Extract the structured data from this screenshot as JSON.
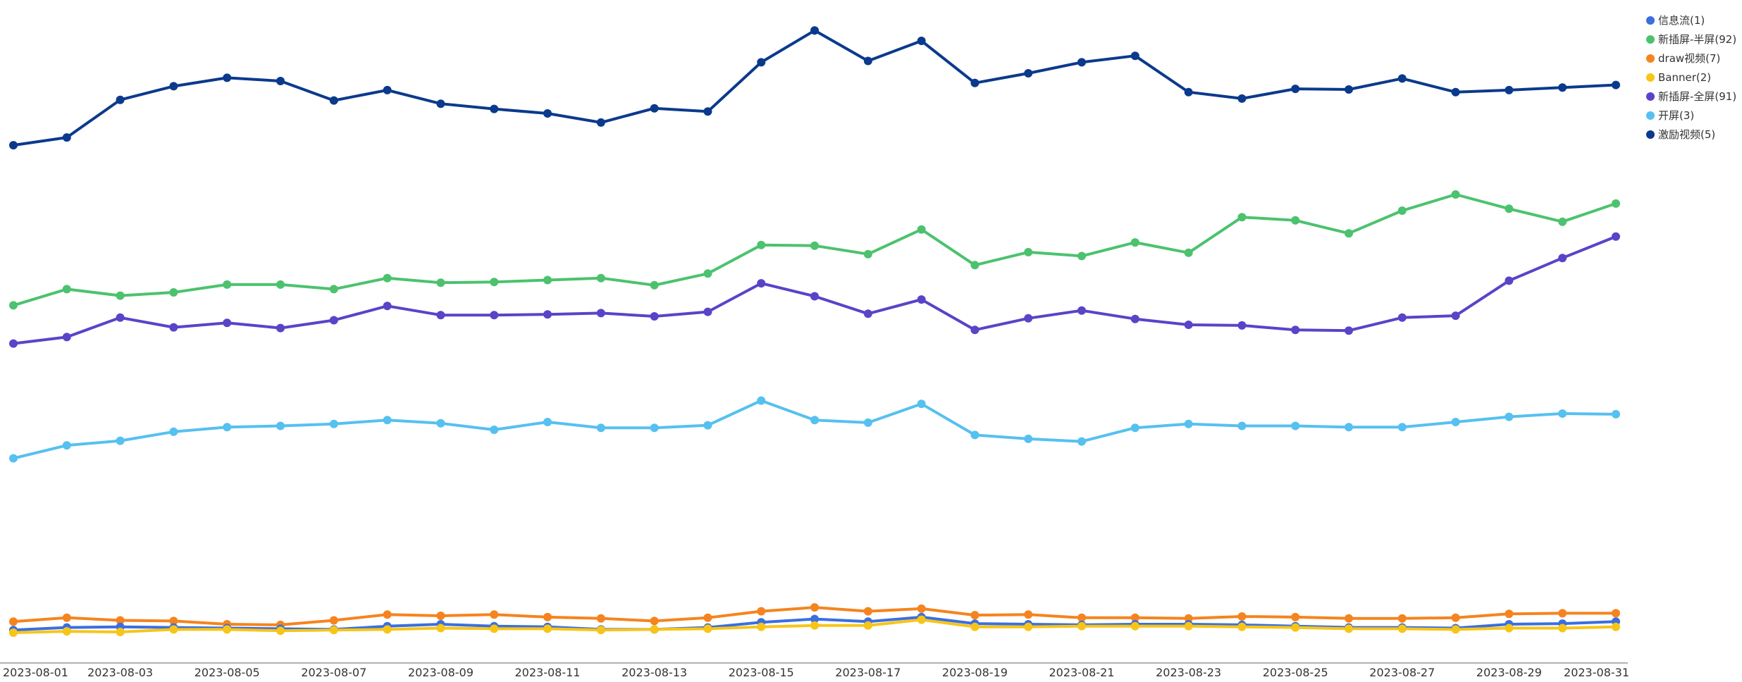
{
  "chart_data": {
    "type": "line",
    "x": [
      "2023-08-01",
      "2023-08-02",
      "2023-08-03",
      "2023-08-04",
      "2023-08-05",
      "2023-08-06",
      "2023-08-07",
      "2023-08-08",
      "2023-08-09",
      "2023-08-10",
      "2023-08-11",
      "2023-08-12",
      "2023-08-13",
      "2023-08-14",
      "2023-08-15",
      "2023-08-16",
      "2023-08-17",
      "2023-08-18",
      "2023-08-19",
      "2023-08-20",
      "2023-08-21",
      "2023-08-22",
      "2023-08-23",
      "2023-08-24",
      "2023-08-25",
      "2023-08-26",
      "2023-08-27",
      "2023-08-28",
      "2023-08-29",
      "2023-08-30",
      "2023-08-31"
    ],
    "x_tick_labels": [
      "2023-08-01",
      "2023-08-03",
      "2023-08-05",
      "2023-08-07",
      "2023-08-09",
      "2023-08-11",
      "2023-08-13",
      "2023-08-15",
      "2023-08-17",
      "2023-08-19",
      "2023-08-21",
      "2023-08-23",
      "2023-08-25",
      "2023-08-27",
      "2023-08-29",
      "2023-08-31"
    ],
    "ylim": [
      0,
      100
    ],
    "grid": false,
    "legend_position": "top-right",
    "title": "",
    "xlabel": "",
    "ylabel": "",
    "series": [
      {
        "name": "信息流(1)",
        "color": "#3a6fe0",
        "values": [
          4.1,
          4.5,
          4.6,
          4.5,
          4.4,
          4.3,
          4.2,
          4.7,
          5.0,
          4.7,
          4.6,
          4.2,
          4.2,
          4.5,
          5.3,
          5.8,
          5.4,
          6.1,
          5.1,
          5.0,
          4.9,
          5.0,
          5.0,
          4.9,
          4.7,
          4.5,
          4.5,
          4.4,
          5.0,
          5.1,
          5.4
        ]
      },
      {
        "name": "新插屏-半屏(92)",
        "color": "#4cc26e",
        "values": [
          54.2,
          56.7,
          55.7,
          56.2,
          57.4,
          57.4,
          56.7,
          58.4,
          57.7,
          57.8,
          58.1,
          58.4,
          57.3,
          59.1,
          63.5,
          63.4,
          62.1,
          65.9,
          60.4,
          62.4,
          61.8,
          63.9,
          62.3,
          67.8,
          67.3,
          65.3,
          68.8,
          71.3,
          69.1,
          67.1,
          69.9
        ]
      },
      {
        "name": "draw视频(7)",
        "color": "#f5841f",
        "values": [
          5.4,
          6.0,
          5.6,
          5.5,
          5.0,
          4.9,
          5.6,
          6.5,
          6.3,
          6.5,
          6.1,
          5.9,
          5.5,
          6.0,
          7.0,
          7.6,
          7.0,
          7.4,
          6.4,
          6.5,
          6.0,
          6.0,
          5.9,
          6.2,
          6.1,
          5.9,
          5.9,
          6.0,
          6.6,
          6.7,
          6.7
        ]
      },
      {
        "name": "Banner(2)",
        "color": "#f7c518",
        "values": [
          3.7,
          3.9,
          3.8,
          4.2,
          4.2,
          4.0,
          4.1,
          4.2,
          4.4,
          4.3,
          4.3,
          4.1,
          4.2,
          4.3,
          4.6,
          4.8,
          4.8,
          5.7,
          4.6,
          4.6,
          4.7,
          4.7,
          4.7,
          4.6,
          4.5,
          4.3,
          4.3,
          4.2,
          4.4,
          4.4,
          4.6
        ]
      },
      {
        "name": "新插屏-全屏(91)",
        "color": "#5b43c8",
        "values": [
          48.3,
          49.3,
          52.3,
          50.8,
          51.5,
          50.7,
          51.9,
          54.1,
          52.7,
          52.7,
          52.8,
          53.0,
          52.5,
          53.2,
          57.6,
          55.6,
          52.9,
          55.1,
          50.4,
          52.2,
          53.4,
          52.1,
          51.2,
          51.1,
          50.4,
          50.3,
          52.3,
          52.6,
          58.0,
          61.5,
          64.8
        ]
      },
      {
        "name": "开屏(3)",
        "color": "#56c0f0",
        "values": [
          30.6,
          32.6,
          33.3,
          34.7,
          35.4,
          35.6,
          35.9,
          36.5,
          36.0,
          35.0,
          36.2,
          35.3,
          35.3,
          35.7,
          39.5,
          36.5,
          36.1,
          39.0,
          34.2,
          33.6,
          33.2,
          35.3,
          35.9,
          35.6,
          35.6,
          35.4,
          35.4,
          36.2,
          37.0,
          37.5,
          37.4
        ]
      },
      {
        "name": "激励视频(5)",
        "color": "#0b3a8c",
        "values": [
          78.9,
          80.1,
          85.9,
          88.0,
          89.3,
          88.8,
          85.8,
          87.4,
          85.3,
          84.5,
          83.8,
          82.4,
          84.6,
          84.1,
          91.7,
          96.6,
          91.9,
          95.0,
          88.5,
          90.0,
          91.7,
          92.7,
          87.1,
          86.1,
          87.6,
          87.5,
          89.2,
          87.1,
          87.4,
          87.8,
          88.2
        ]
      }
    ]
  }
}
